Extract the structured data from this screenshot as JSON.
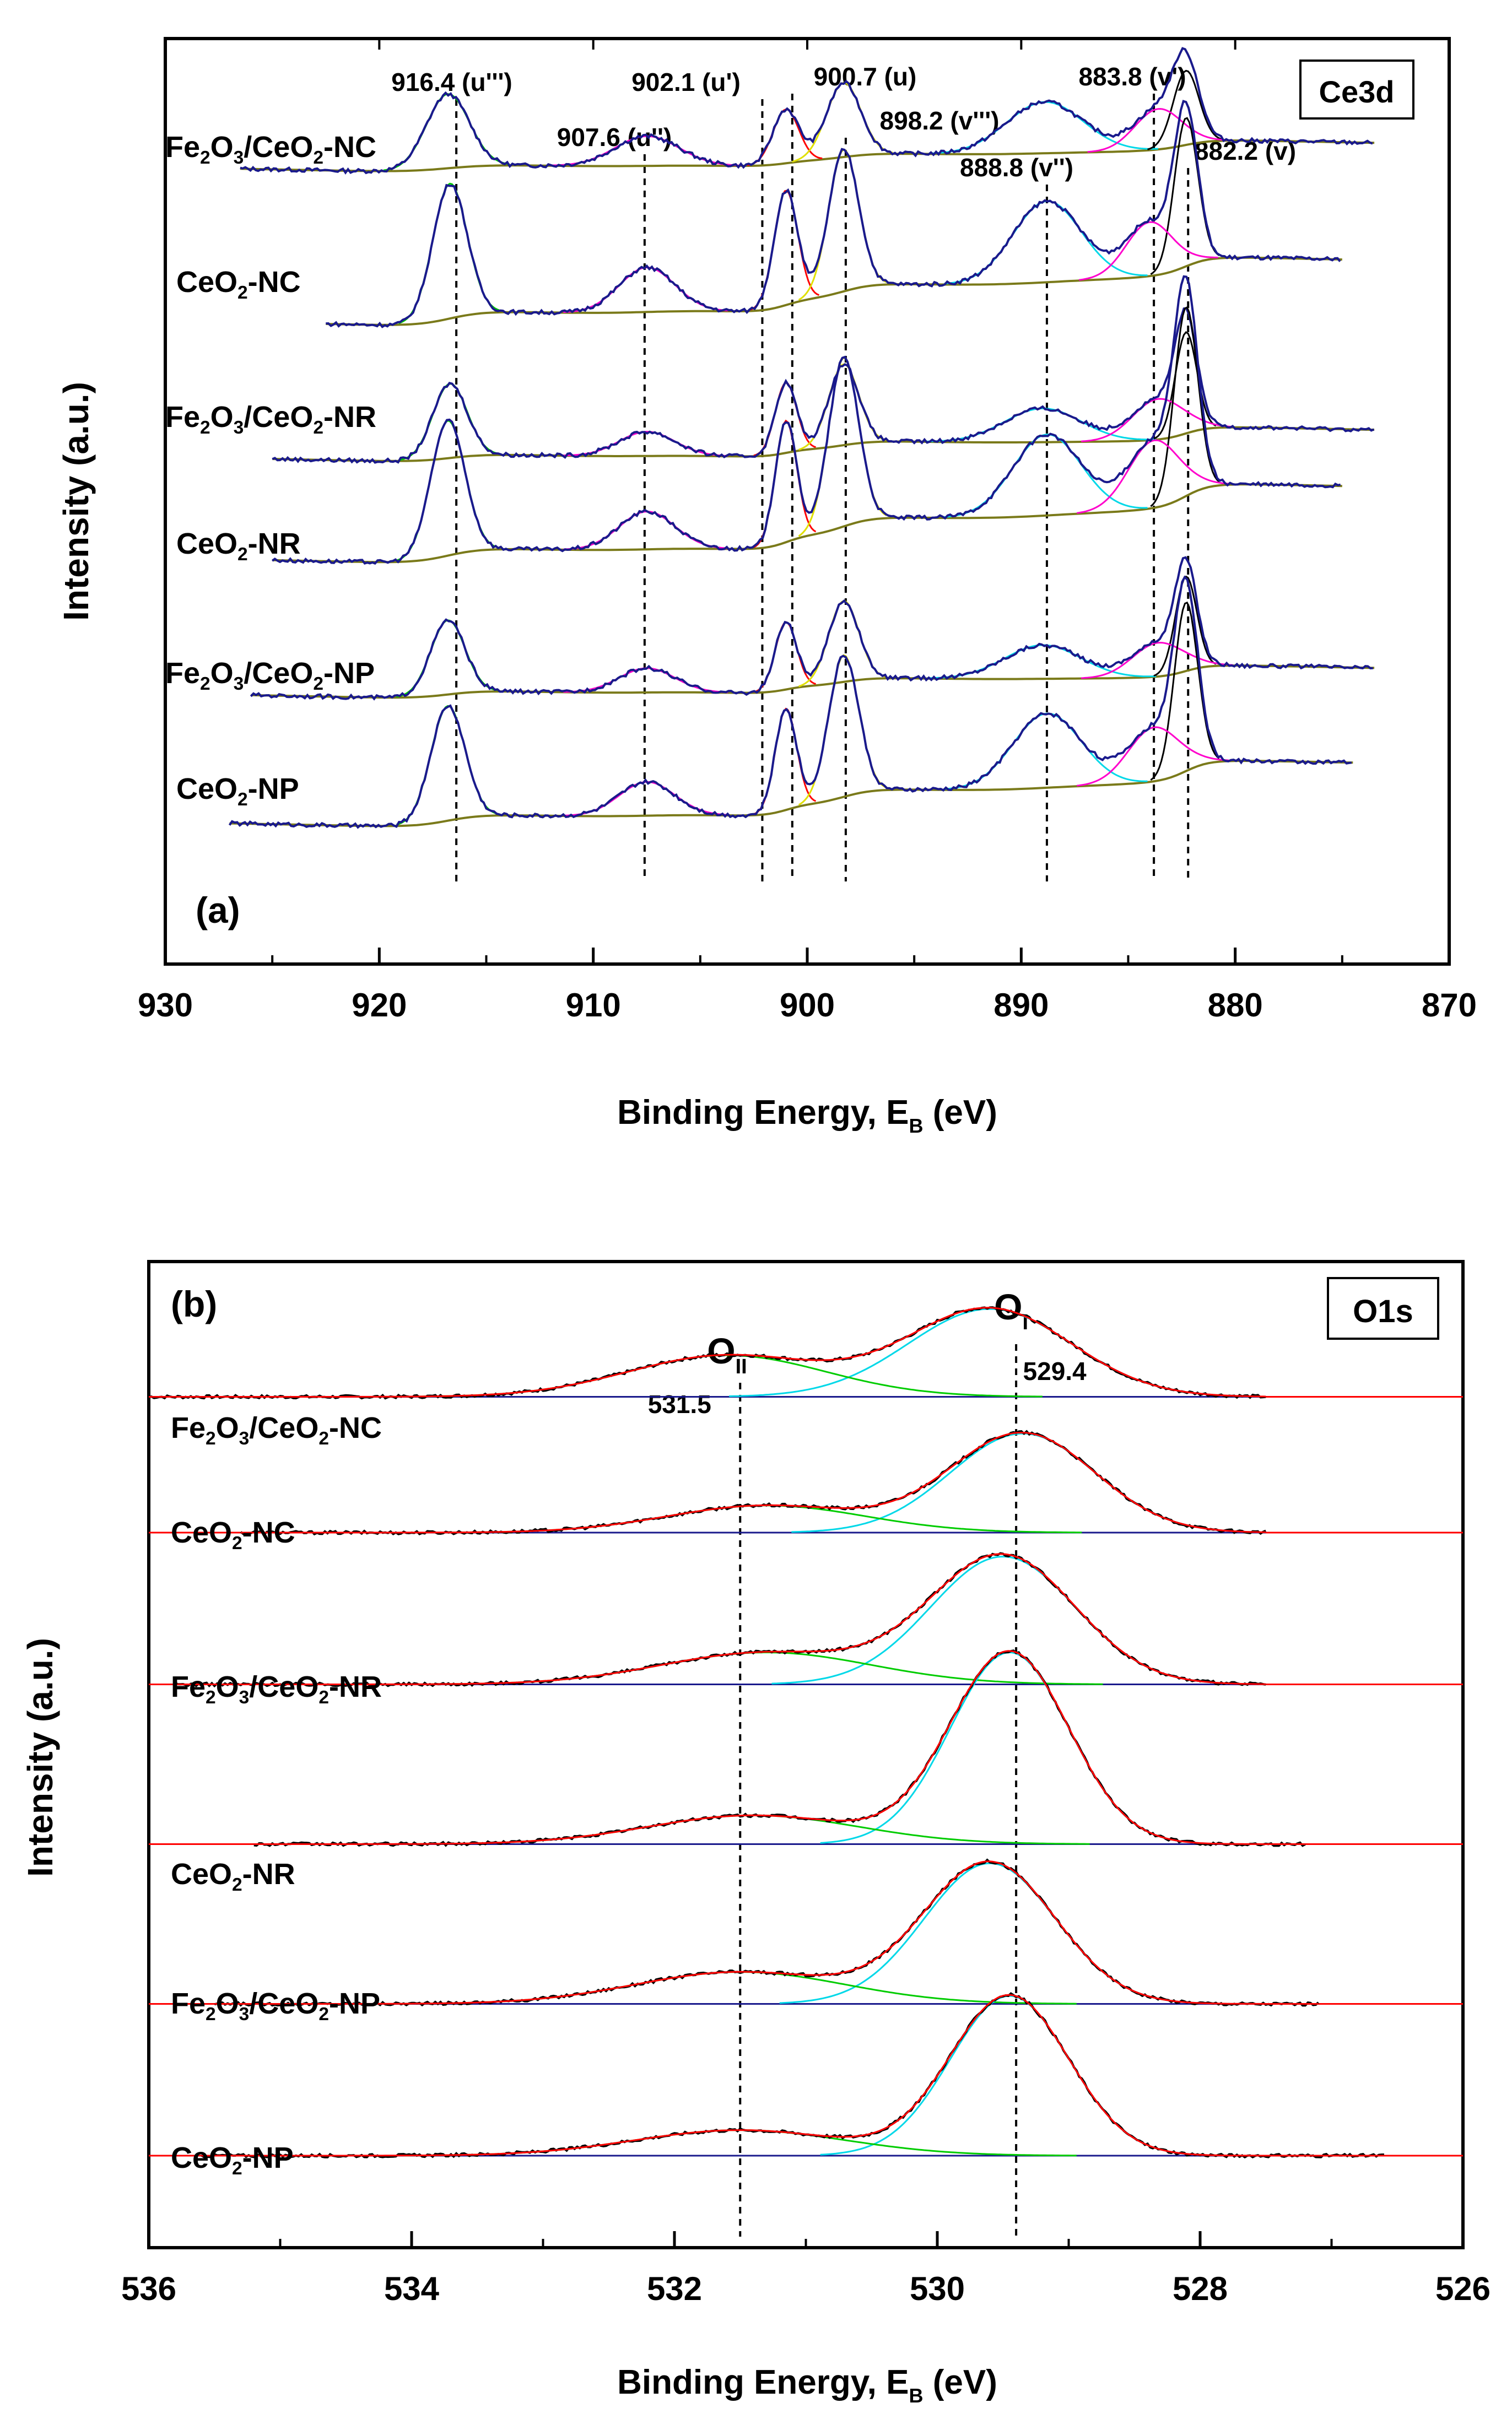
{
  "chart_data": [
    {
      "panel": "(a)",
      "type": "line",
      "title": "Ce3d",
      "xlabel": "Binding Energy, E",
      "xlabel_sub": "B",
      "xlabel_unit": " (eV)",
      "ylabel": "Intensity (a.u.)",
      "xlim": [
        930,
        870
      ],
      "xticks": [
        930,
        920,
        910,
        900,
        890,
        880,
        870
      ],
      "reference_lines": [
        {
          "value": 916.4,
          "label": "916.4 (u''')"
        },
        {
          "value": 907.6,
          "label": "907.6 (u'')"
        },
        {
          "value": 902.1,
          "label": "902.1 (u')"
        },
        {
          "value": 900.7,
          "label": "900.7 (u)"
        },
        {
          "value": 898.2,
          "label": "898.2 (v''')"
        },
        {
          "value": 888.8,
          "label": "888.8 (v'')"
        },
        {
          "value": 883.8,
          "label": "883.8 (v')"
        },
        {
          "value": 882.2,
          "label": "882.2 (v)"
        }
      ],
      "series": [
        {
          "name": "Fe2O3/CeO2-NC",
          "label_parts": [
            [
              "Fe",
              ""
            ],
            [
              "2",
              "sub"
            ],
            [
              "O",
              ""
            ],
            [
              "3",
              "sub"
            ],
            [
              "/CeO",
              ""
            ],
            [
              "2",
              "sub"
            ],
            [
              "-NC",
              ""
            ]
          ],
          "x_range": [
            926.5,
            873.5
          ],
          "offset": 5.2,
          "peaks": [
            [
              916.8,
              0.55,
              1.0
            ],
            [
              907.5,
              0.22,
              1.5
            ],
            [
              901.0,
              0.4,
              0.6
            ],
            [
              898.3,
              0.55,
              0.8
            ],
            [
              888.9,
              0.38,
              1.8
            ],
            [
              882.3,
              0.55,
              0.6
            ],
            [
              883.6,
              0.3,
              1.1
            ]
          ]
        },
        {
          "name": "CeO2-NC",
          "label_parts": [
            [
              "CeO",
              ""
            ],
            [
              "2",
              "sub"
            ],
            [
              "-NC",
              ""
            ]
          ],
          "x_range": [
            922.5,
            875.0
          ],
          "offset": 4.05,
          "peaks": [
            [
              916.7,
              1.0,
              0.8
            ],
            [
              907.5,
              0.33,
              1.3
            ],
            [
              901.0,
              0.85,
              0.55
            ],
            [
              898.3,
              1.05,
              0.7
            ],
            [
              888.8,
              0.6,
              1.6
            ],
            [
              882.3,
              1.1,
              0.55
            ],
            [
              884.0,
              0.4,
              1.1
            ]
          ]
        },
        {
          "name": "Fe2O3/CeO2-NR",
          "label_parts": [
            [
              "Fe",
              ""
            ],
            [
              "2",
              "sub"
            ],
            [
              "O",
              ""
            ],
            [
              "3",
              "sub"
            ],
            [
              "/CeO",
              ""
            ],
            [
              "2",
              "sub"
            ],
            [
              "-NR",
              ""
            ]
          ],
          "x_range": [
            925.0,
            873.5
          ],
          "offset": 3.05,
          "peaks": [
            [
              916.7,
              0.55,
              0.8
            ],
            [
              907.5,
              0.18,
              1.3
            ],
            [
              901.0,
              0.52,
              0.5
            ],
            [
              898.3,
              0.6,
              0.7
            ],
            [
              889.0,
              0.25,
              1.8
            ],
            [
              882.3,
              0.75,
              0.5
            ],
            [
              883.6,
              0.3,
              1.2
            ]
          ]
        },
        {
          "name": "CeO2-NR",
          "label_parts": [
            [
              "CeO",
              ""
            ],
            [
              "2",
              "sub"
            ],
            [
              "-NR",
              ""
            ]
          ],
          "x_range": [
            925.0,
            875.0
          ],
          "offset": 2.3,
          "peaks": [
            [
              916.8,
              1.0,
              0.8
            ],
            [
              907.5,
              0.28,
              1.3
            ],
            [
              901.0,
              0.9,
              0.5
            ],
            [
              898.3,
              1.25,
              0.7
            ],
            [
              888.8,
              0.6,
              1.6
            ],
            [
              882.3,
              1.4,
              0.55
            ],
            [
              883.8,
              0.5,
              1.2
            ]
          ]
        },
        {
          "name": "Fe2O3/CeO2-NP",
          "label_parts": [
            [
              "Fe",
              ""
            ],
            [
              "2",
              "sub"
            ],
            [
              "O",
              ""
            ],
            [
              "3",
              "sub"
            ],
            [
              "/CeO",
              ""
            ],
            [
              "2",
              "sub"
            ],
            [
              "-NP",
              ""
            ]
          ],
          "x_range": [
            926.0,
            873.5
          ],
          "offset": 1.3,
          "peaks": [
            [
              916.8,
              0.55,
              0.8
            ],
            [
              907.5,
              0.18,
              1.3
            ],
            [
              901.0,
              0.5,
              0.5
            ],
            [
              898.3,
              0.6,
              0.7
            ],
            [
              889.0,
              0.25,
              1.8
            ],
            [
              882.3,
              0.7,
              0.5
            ],
            [
              883.6,
              0.25,
              1.2
            ]
          ]
        },
        {
          "name": "CeO2-NP",
          "label_parts": [
            [
              "CeO",
              ""
            ],
            [
              "2",
              "sub"
            ],
            [
              "-NP",
              ""
            ]
          ],
          "x_range": [
            927.0,
            874.5
          ],
          "offset": 0.35,
          "peaks": [
            [
              916.8,
              0.85,
              0.8
            ],
            [
              907.5,
              0.25,
              1.3
            ],
            [
              901.0,
              0.75,
              0.5
            ],
            [
              898.3,
              1.05,
              0.7
            ],
            [
              888.8,
              0.55,
              1.6
            ],
            [
              882.3,
              1.25,
              0.55
            ],
            [
              883.8,
              0.4,
              1.2
            ]
          ]
        }
      ]
    },
    {
      "panel": "(b)",
      "type": "line",
      "title": "O1s",
      "xlabel": "Binding Energy, E",
      "xlabel_sub": "B",
      "xlabel_unit": " (eV)",
      "ylabel": "Intensity (a.u.)",
      "xlim": [
        536,
        526
      ],
      "xticks": [
        536,
        534,
        532,
        530,
        528,
        526
      ],
      "peak_labels": [
        {
          "value": 531.5,
          "name": "O",
          "sub": "II",
          "position_label": "531.5"
        },
        {
          "value": 529.4,
          "name": "O",
          "sub": "I",
          "position_label": "529.4"
        }
      ],
      "series": [
        {
          "name": "Fe2O3/CeO2-NC",
          "label_parts": [
            [
              "Fe",
              ""
            ],
            [
              "2",
              "sub"
            ],
            [
              "O",
              ""
            ],
            [
              "3",
              "sub"
            ],
            [
              "/CeO",
              ""
            ],
            [
              "2",
              "sub"
            ],
            [
              "-NC",
              ""
            ]
          ],
          "x_range": [
            536.0,
            527.5
          ],
          "offset": 5.05,
          "components": [
            {
              "center": 529.6,
              "amp": 0.55,
              "sigma": 0.62
            },
            {
              "center": 531.6,
              "amp": 0.26,
              "sigma": 0.75
            }
          ]
        },
        {
          "name": "CeO2-NC",
          "label_parts": [
            [
              "CeO",
              ""
            ],
            [
              "2",
              "sub"
            ],
            [
              "-NC",
              ""
            ]
          ],
          "x_range": [
            535.3,
            527.5
          ],
          "offset": 4.2,
          "components": [
            {
              "center": 529.35,
              "amp": 0.62,
              "sigma": 0.55
            },
            {
              "center": 531.3,
              "amp": 0.17,
              "sigma": 0.75
            }
          ]
        },
        {
          "name": "Fe2O3/CeO2-NR",
          "label_parts": [
            [
              "Fe",
              ""
            ],
            [
              "2",
              "sub"
            ],
            [
              "O",
              ""
            ],
            [
              "3",
              "sub"
            ],
            [
              "/CeO",
              ""
            ],
            [
              "2",
              "sub"
            ],
            [
              "-NR",
              ""
            ]
          ],
          "x_range": [
            535.8,
            527.5
          ],
          "offset": 3.25,
          "components": [
            {
              "center": 529.5,
              "amp": 0.8,
              "sigma": 0.55
            },
            {
              "center": 531.3,
              "amp": 0.2,
              "sigma": 0.8
            }
          ]
        },
        {
          "name": "CeO2-NR",
          "label_parts": [
            [
              "CeO",
              ""
            ],
            [
              "2",
              "sub"
            ],
            [
              "-NR",
              ""
            ]
          ],
          "x_range": [
            535.2,
            527.2
          ],
          "offset": 2.25,
          "components": [
            {
              "center": 529.45,
              "amp": 1.2,
              "sigma": 0.45
            },
            {
              "center": 531.4,
              "amp": 0.18,
              "sigma": 0.8
            }
          ]
        },
        {
          "name": "Fe2O3/CeO2-NP",
          "label_parts": [
            [
              "Fe",
              ""
            ],
            [
              "2",
              "sub"
            ],
            [
              "O",
              ""
            ],
            [
              "3",
              "sub"
            ],
            [
              "/CeO",
              ""
            ],
            [
              "2",
              "sub"
            ],
            [
              "-NP",
              ""
            ]
          ],
          "x_range": [
            535.5,
            527.1
          ],
          "offset": 1.25,
          "components": [
            {
              "center": 529.6,
              "amp": 0.88,
              "sigma": 0.5
            },
            {
              "center": 531.5,
              "amp": 0.2,
              "sigma": 0.8
            }
          ]
        },
        {
          "name": "CeO2-NP",
          "label_parts": [
            [
              "CeO",
              ""
            ],
            [
              "2",
              "sub"
            ],
            [
              "-NP",
              ""
            ]
          ],
          "x_range": [
            535.6,
            526.6
          ],
          "offset": 0.3,
          "components": [
            {
              "center": 529.45,
              "amp": 1.0,
              "sigma": 0.45
            },
            {
              "center": 531.5,
              "amp": 0.16,
              "sigma": 0.8
            }
          ]
        }
      ]
    }
  ],
  "colors": {
    "envelope": "#1a1a8c",
    "baseline": "#7a7a1a",
    "fit_red": "#ff0000",
    "fit_cyan": "#00d8e8",
    "fit_green": "#00cc00",
    "fit_magenta": "#ff00cc",
    "fit_yellow": "#e0e000",
    "fit_black": "#000000",
    "o1s_raw": "#000000",
    "o1s_baseline": "#1a1a8c",
    "refline": "#000000"
  }
}
